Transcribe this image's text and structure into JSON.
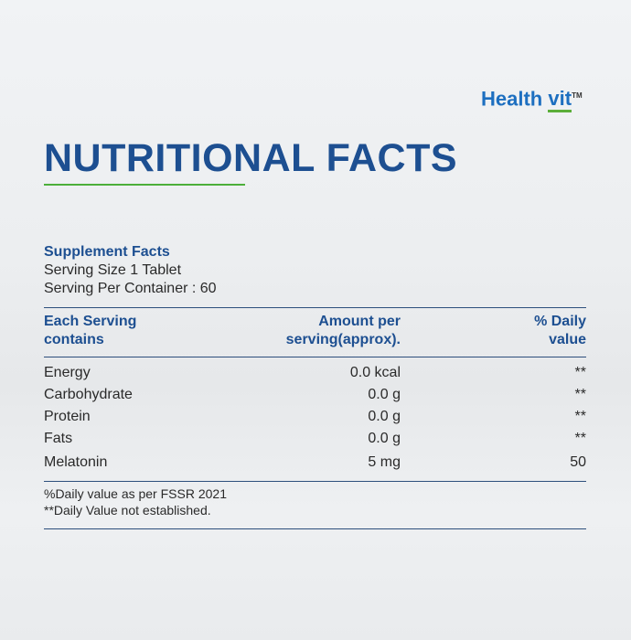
{
  "brand": {
    "part1": "Health",
    "part2": "vit",
    "trademark": "TM"
  },
  "title": "NUTRITIONAL FACTS",
  "supplement": {
    "heading": "Supplement Facts",
    "serving_size": "Serving Size 1 Tablet",
    "servings_per_container": "Serving Per Container : 60"
  },
  "table": {
    "header": [
      [
        "Each Serving",
        "contains"
      ],
      [
        "Amount per",
        "serving(approx)."
      ],
      [
        "% Daily",
        "value"
      ]
    ],
    "rows": [
      [
        "Energy",
        "0.0 kcal",
        "**"
      ],
      [
        "Carbohydrate",
        "0.0 g",
        "**"
      ],
      [
        "Protein",
        "0.0 g",
        "**"
      ],
      [
        "Fats",
        "0.0 g",
        "**"
      ],
      [
        "Melatonin",
        "5 mg",
        "50"
      ]
    ]
  },
  "footnotes": [
    "%Daily value as per FSSR 2021",
    "**Daily Value not established."
  ]
}
